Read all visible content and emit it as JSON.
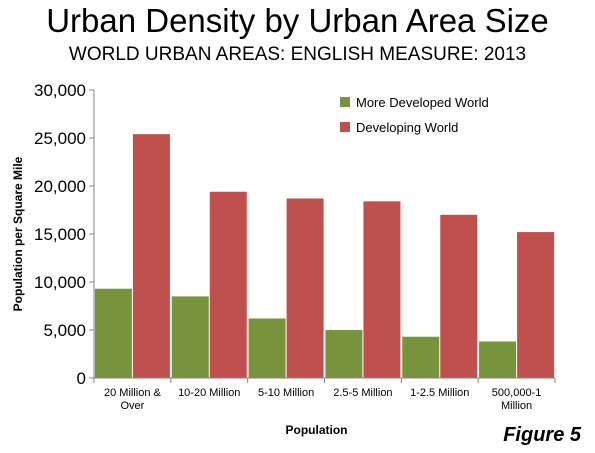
{
  "figure_label": "Figure 5",
  "colors": {
    "series_1": "#77933C",
    "series_2": "#C0504D",
    "axis": "#868686"
  },
  "chart_data": {
    "type": "bar",
    "title": "Urban Density by Urban Area Size",
    "subtitle": "WORLD URBAN AREAS: ENGLISH MEASURE: 2013",
    "xlabel": "Population",
    "ylabel": "Population per Square Mile",
    "categories": [
      [
        "20 Million &",
        "Over"
      ],
      [
        "10-20 Million"
      ],
      [
        "5-10 Million"
      ],
      [
        "2.5-5 Million"
      ],
      [
        "1-2.5 Million"
      ],
      [
        "500,000-1",
        "Million"
      ]
    ],
    "series": [
      {
        "name": "More Developed World",
        "values": [
          9300,
          8500,
          6200,
          5000,
          4300,
          3800
        ]
      },
      {
        "name": "Developing World",
        "values": [
          25400,
          19400,
          18700,
          18400,
          17000,
          15200
        ]
      }
    ],
    "ylim": [
      0,
      30000
    ],
    "yticks": [
      "0",
      "5,000",
      "10,000",
      "15,000",
      "20,000",
      "25,000",
      "30,000"
    ],
    "grid": false,
    "legend_position": "top-right"
  }
}
